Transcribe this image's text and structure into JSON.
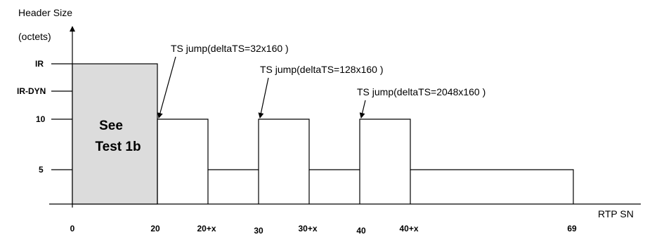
{
  "y_axis": {
    "title_line1": "Header Size",
    "title_line2": "(octets)",
    "ticks": [
      "IR",
      "IR-DYN",
      "10",
      "5"
    ]
  },
  "x_axis": {
    "label": "RTP SN",
    "ticks": [
      "0",
      "20",
      "20+x",
      "30",
      "30+x",
      "40",
      "40+x",
      "69"
    ]
  },
  "shaded_box": {
    "line1": "See",
    "line2": "Test 1b",
    "fill": "#dcdcdc"
  },
  "annotations": [
    "TS jump(deltaTS=32x160 )",
    "TS jump(deltaTS=128x160 )",
    "TS jump(deltaTS=2048x160 )"
  ],
  "colors": {
    "line": "#000000",
    "background": "#ffffff"
  }
}
